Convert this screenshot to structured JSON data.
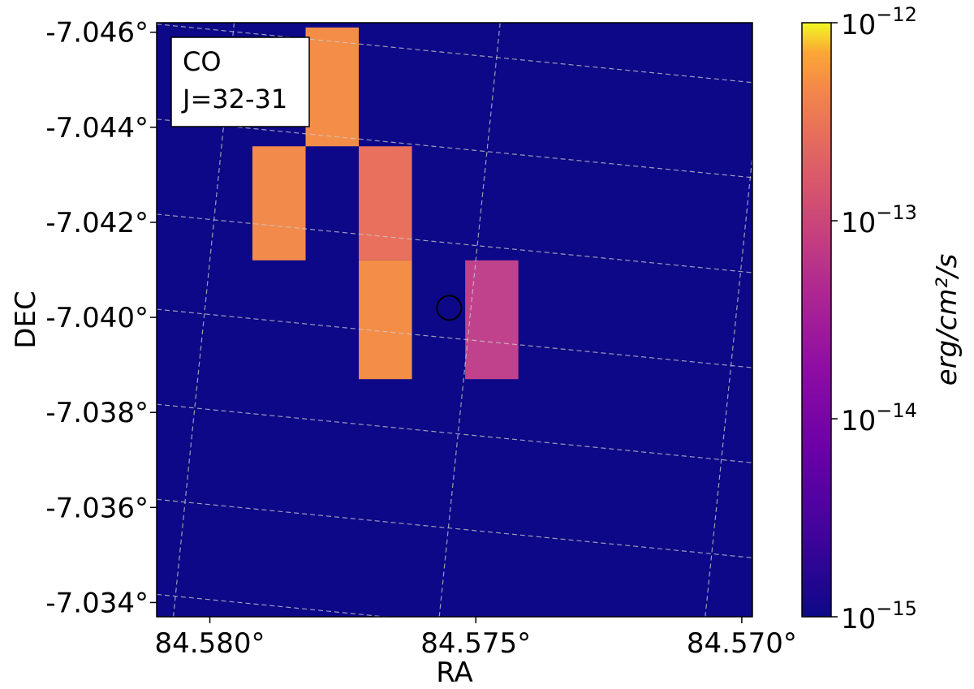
{
  "chart_data": {
    "type": "heatmap",
    "title": "",
    "xlabel": "RA",
    "ylabel": "DEC",
    "x_ticks": [
      "84.580°",
      "84.575°",
      "84.570°"
    ],
    "y_ticks": [
      "-7.046°",
      "-7.044°",
      "-7.042°",
      "-7.040°",
      "-7.038°",
      "-7.036°",
      "-7.034°"
    ],
    "annotation": [
      "CO",
      "J=32-31"
    ],
    "grid": true,
    "colormap": "plasma",
    "background_value": 1e-15,
    "background_color": "#0d0887",
    "pixels": [
      {
        "ra": [
          84.5782,
          84.5772
        ],
        "dec": [
          -7.0461,
          -7.0436
        ],
        "value": 2.5e-13,
        "color": "#f48d48"
      },
      {
        "ra": [
          84.5772,
          84.5762
        ],
        "dec": [
          -7.0436,
          -7.0412
        ],
        "value": 1e-13,
        "color": "#e8705c"
      },
      {
        "ra": [
          84.5772,
          84.5762
        ],
        "dec": [
          -7.0412,
          -7.0387
        ],
        "value": 2.5e-13,
        "color": "#f48d48"
      },
      {
        "ra": [
          84.5792,
          84.5782
        ],
        "dec": [
          -7.0436,
          -7.0412
        ],
        "value": 2e-13,
        "color": "#f28a4b"
      },
      {
        "ra": [
          84.5752,
          84.5742
        ],
        "dec": [
          -7.0412,
          -7.0387
        ],
        "value": 3e-14,
        "color": "#c0428c"
      }
    ],
    "marker": {
      "type": "circle",
      "ra": 84.5755,
      "dec": -7.0402
    },
    "colorbar": {
      "label": "erg/cm²/s",
      "scale": "log",
      "range": [
        1e-15,
        1e-12
      ],
      "ticks": [
        {
          "base": "10",
          "exp": "−12",
          "value": 1e-12
        },
        {
          "base": "10",
          "exp": "−13",
          "value": 1e-13
        },
        {
          "base": "10",
          "exp": "−14",
          "value": 1e-14
        },
        {
          "base": "10",
          "exp": "−15",
          "value": 1e-15
        }
      ]
    }
  }
}
